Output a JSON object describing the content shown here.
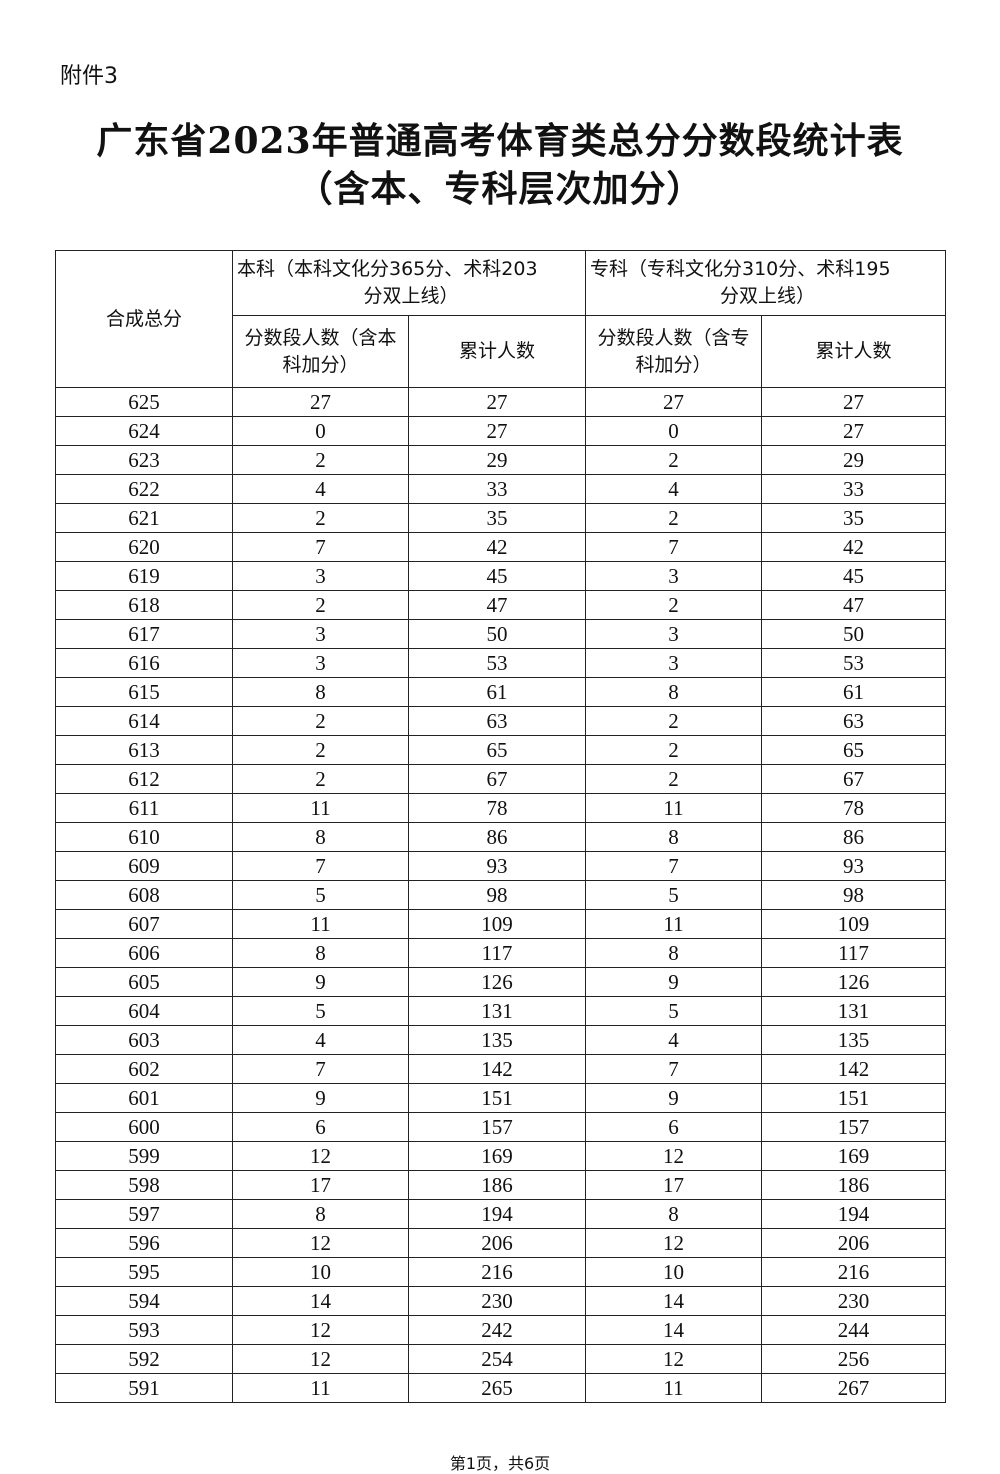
{
  "attachment_label": "附件3",
  "title_line1": "广东省2023年普通高考体育类总分分数段统计表",
  "title_line2": "（含本、专科层次加分）",
  "table": {
    "col_total": "合成总分",
    "group_bk_line1": "本科（本科文化分365分、术科203",
    "group_bk_line2": "分双上线）",
    "group_zk_line1": "专科（专科文化分310分、术科195",
    "group_zk_line2": "分双上线）",
    "bk_count": "分数段人数（含本科加分）",
    "bk_cum": "累计人数",
    "zk_count": "分数段人数（含专科加分）",
    "zk_cum": "累计人数",
    "rows": [
      [
        "625",
        "27",
        "27",
        "27",
        "27"
      ],
      [
        "624",
        "0",
        "27",
        "0",
        "27"
      ],
      [
        "623",
        "2",
        "29",
        "2",
        "29"
      ],
      [
        "622",
        "4",
        "33",
        "4",
        "33"
      ],
      [
        "621",
        "2",
        "35",
        "2",
        "35"
      ],
      [
        "620",
        "7",
        "42",
        "7",
        "42"
      ],
      [
        "619",
        "3",
        "45",
        "3",
        "45"
      ],
      [
        "618",
        "2",
        "47",
        "2",
        "47"
      ],
      [
        "617",
        "3",
        "50",
        "3",
        "50"
      ],
      [
        "616",
        "3",
        "53",
        "3",
        "53"
      ],
      [
        "615",
        "8",
        "61",
        "8",
        "61"
      ],
      [
        "614",
        "2",
        "63",
        "2",
        "63"
      ],
      [
        "613",
        "2",
        "65",
        "2",
        "65"
      ],
      [
        "612",
        "2",
        "67",
        "2",
        "67"
      ],
      [
        "611",
        "11",
        "78",
        "11",
        "78"
      ],
      [
        "610",
        "8",
        "86",
        "8",
        "86"
      ],
      [
        "609",
        "7",
        "93",
        "7",
        "93"
      ],
      [
        "608",
        "5",
        "98",
        "5",
        "98"
      ],
      [
        "607",
        "11",
        "109",
        "11",
        "109"
      ],
      [
        "606",
        "8",
        "117",
        "8",
        "117"
      ],
      [
        "605",
        "9",
        "126",
        "9",
        "126"
      ],
      [
        "604",
        "5",
        "131",
        "5",
        "131"
      ],
      [
        "603",
        "4",
        "135",
        "4",
        "135"
      ],
      [
        "602",
        "7",
        "142",
        "7",
        "142"
      ],
      [
        "601",
        "9",
        "151",
        "9",
        "151"
      ],
      [
        "600",
        "6",
        "157",
        "6",
        "157"
      ],
      [
        "599",
        "12",
        "169",
        "12",
        "169"
      ],
      [
        "598",
        "17",
        "186",
        "17",
        "186"
      ],
      [
        "597",
        "8",
        "194",
        "8",
        "194"
      ],
      [
        "596",
        "12",
        "206",
        "12",
        "206"
      ],
      [
        "595",
        "10",
        "216",
        "10",
        "216"
      ],
      [
        "594",
        "14",
        "230",
        "14",
        "230"
      ],
      [
        "593",
        "12",
        "242",
        "14",
        "244"
      ],
      [
        "592",
        "12",
        "254",
        "12",
        "256"
      ],
      [
        "591",
        "11",
        "265",
        "11",
        "267"
      ]
    ]
  },
  "footer": "第1页，共6页"
}
